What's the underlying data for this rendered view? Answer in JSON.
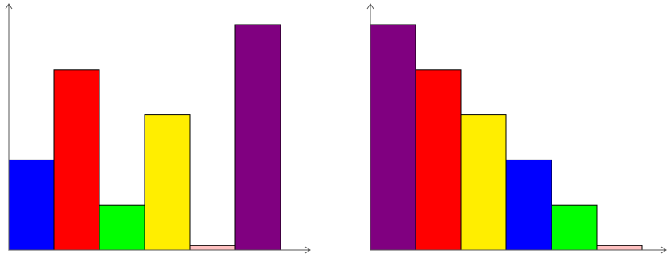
{
  "chart_data": [
    {
      "type": "bar",
      "ylim": [
        0,
        5
      ],
      "grid": false,
      "series": [
        {
          "values": [
            2,
            4,
            1,
            3,
            0.1,
            5
          ]
        }
      ],
      "colors": [
        "#0000ff",
        "#ff0000",
        "#00ff00",
        "#ffee00",
        "#ffc0c0",
        "#800080"
      ]
    },
    {
      "type": "bar",
      "ylim": [
        0,
        5
      ],
      "grid": false,
      "series": [
        {
          "values": [
            5,
            4,
            3,
            2,
            1,
            0.1
          ]
        }
      ],
      "colors": [
        "#800080",
        "#ff0000",
        "#ffee00",
        "#0000ff",
        "#00ff00",
        "#ffc0c0"
      ]
    }
  ]
}
